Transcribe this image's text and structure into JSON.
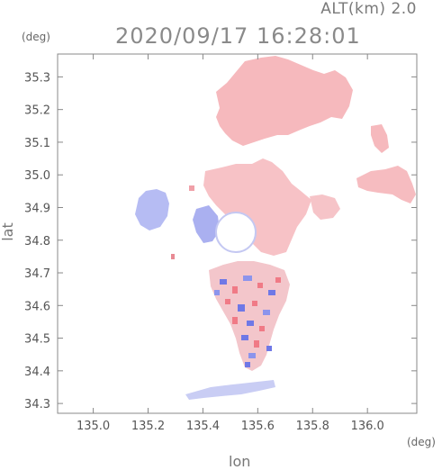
{
  "header": {
    "altitude_label": "ALT(km)  2.0",
    "timestamp": "2020/09/17  16:28:01"
  },
  "axes": {
    "x_label": "lon",
    "y_label": "lat",
    "x_unit": "(deg)",
    "y_unit": "(deg)",
    "x_range": [
      134.87,
      136.18
    ],
    "y_range": [
      34.27,
      35.37
    ],
    "x_ticks": [
      "135.0",
      "135.2",
      "135.4",
      "135.6",
      "135.8",
      "136.0"
    ],
    "y_ticks": [
      "35.3",
      "35.2",
      "35.1",
      "35.0",
      "34.9",
      "34.8",
      "34.7",
      "34.6",
      "34.5",
      "34.4",
      "34.3"
    ]
  },
  "colors": {
    "receding_pink": "#f5b4b8",
    "approaching_blue": "#a8aef0",
    "strong_red": "#f07a86",
    "strong_blue": "#6f78e6",
    "frame": "#888888"
  }
}
